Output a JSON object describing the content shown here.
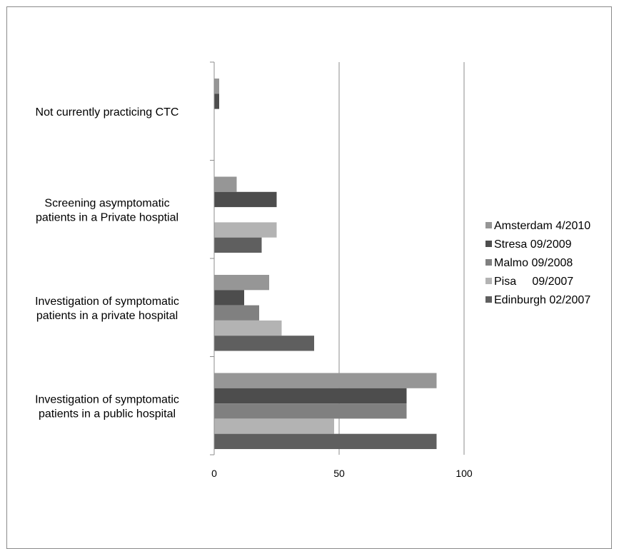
{
  "chart_data": {
    "type": "bar",
    "orientation": "horizontal",
    "categories": [
      [
        "Not currently practicing CTC"
      ],
      [
        "Screening asymptomatic",
        "patients in a Private hosptial"
      ],
      [
        "Investigation of symptomatic",
        "patients in a private hospital"
      ],
      [
        "Investigation of symptomatic",
        "patients in a public hospital"
      ]
    ],
    "series": [
      {
        "name": "Amsterdam 4/2010",
        "color": "#969696",
        "values": [
          2,
          9,
          22,
          89
        ]
      },
      {
        "name": "Stresa 09/2009",
        "color": "#4d4d4d",
        "values": [
          2,
          25,
          12,
          77
        ]
      },
      {
        "name": "Malmo 09/2008",
        "color": "#808080",
        "values": [
          null,
          null,
          18,
          77
        ]
      },
      {
        "name": "Pisa     09/2007",
        "color": "#b3b3b3",
        "values": [
          null,
          25,
          27,
          48
        ]
      },
      {
        "name": "Edinburgh 02/2007",
        "color": "#5f5f5f",
        "values": [
          null,
          19,
          40,
          89
        ]
      }
    ],
    "xlim": [
      0,
      100
    ],
    "xticks": [
      "0",
      "50",
      "100"
    ],
    "grid": "vertical-major",
    "legend": "right"
  }
}
